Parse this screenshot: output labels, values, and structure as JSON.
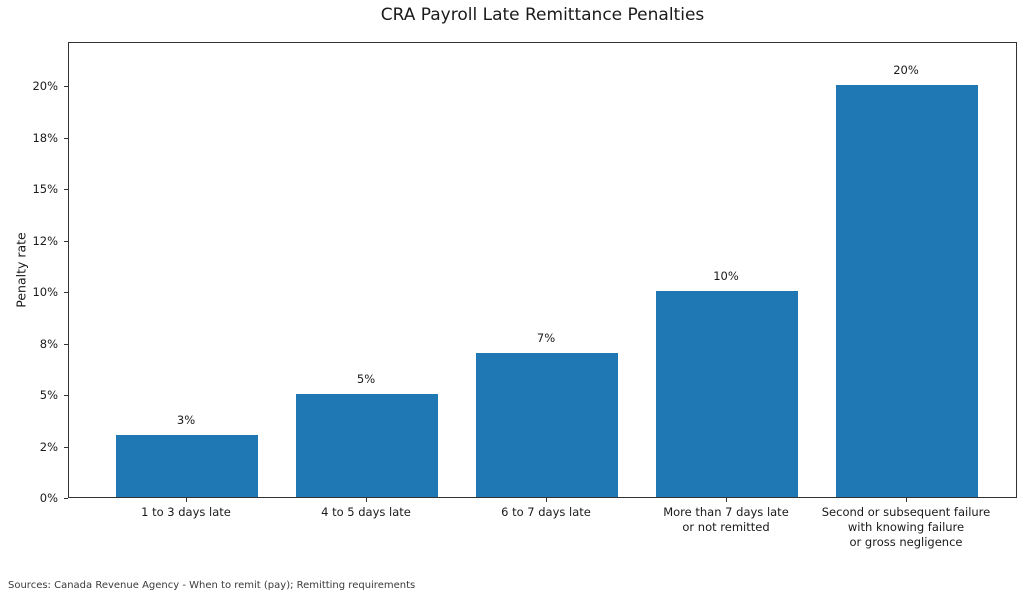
{
  "figure": {
    "source_note": "Sources: Canada Revenue Agency - When to remit (pay); Remitting requirements"
  },
  "chart_data": {
    "type": "bar",
    "title": "CRA Payroll Late Remittance Penalties",
    "xlabel": "",
    "ylabel": "Penalty rate",
    "categories": [
      "1 to 3 days late",
      "4 to 5 days late",
      "6 to 7 days late",
      "More than 7 days late\nor not remitted",
      "Second or subsequent failure\nwith knowing failure\nor gross negligence"
    ],
    "values": [
      3,
      5,
      7,
      10,
      20
    ],
    "bar_labels": [
      "3%",
      "5%",
      "7%",
      "10%",
      "20%"
    ],
    "bar_color": "#1f77b4",
    "ylim": [
      0,
      22.15
    ],
    "yticks": [
      {
        "value": 0,
        "label": "0%"
      },
      {
        "value": 2.5,
        "label": "2%"
      },
      {
        "value": 5,
        "label": "5%"
      },
      {
        "value": 7.5,
        "label": "8%"
      },
      {
        "value": 10,
        "label": "10%"
      },
      {
        "value": 12.5,
        "label": "12%"
      },
      {
        "value": 15,
        "label": "15%"
      },
      {
        "value": 17.5,
        "label": "18%"
      },
      {
        "value": 20,
        "label": "20%"
      }
    ],
    "grid": false,
    "legend": "none"
  }
}
